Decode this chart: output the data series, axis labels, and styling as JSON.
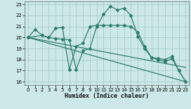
{
  "xlabel": "Humidex (Indice chaleur)",
  "xlim": [
    -0.5,
    23.5
  ],
  "ylim": [
    15.7,
    23.3
  ],
  "yticks": [
    16,
    17,
    18,
    19,
    20,
    21,
    22,
    23
  ],
  "xticks": [
    0,
    1,
    2,
    3,
    4,
    5,
    6,
    7,
    8,
    9,
    10,
    11,
    12,
    13,
    14,
    15,
    16,
    17,
    18,
    19,
    20,
    21,
    22,
    23
  ],
  "background_color": "#cce8e8",
  "grid_color": "#aacccc",
  "line_color": "#2e7d6e",
  "line1_x": [
    0,
    1,
    2,
    3,
    4,
    5,
    6,
    7,
    8,
    9,
    10,
    11,
    12,
    13,
    14,
    15,
    16,
    17,
    18,
    19,
    20,
    21,
    22,
    23
  ],
  "line1_y": [
    20.0,
    20.75,
    20.2,
    20.0,
    19.9,
    19.85,
    19.8,
    17.1,
    18.8,
    19.0,
    21.0,
    22.1,
    22.85,
    22.5,
    22.65,
    22.0,
    20.1,
    19.0,
    18.2,
    18.1,
    18.0,
    18.3,
    17.0,
    16.0
  ],
  "line2_x": [
    0,
    2,
    3,
    4,
    5,
    6,
    7,
    8,
    9,
    10,
    11,
    12,
    13,
    14,
    15,
    16,
    17,
    18,
    19,
    20,
    21,
    22,
    23
  ],
  "line2_y": [
    20.0,
    20.2,
    20.0,
    20.85,
    20.9,
    17.1,
    19.2,
    19.5,
    21.0,
    21.1,
    21.1,
    21.1,
    21.1,
    21.1,
    21.0,
    20.5,
    19.2,
    18.2,
    18.0,
    17.8,
    18.1,
    17.0,
    16.0
  ],
  "line3_x": [
    0,
    23
  ],
  "line3_y": [
    20.0,
    16.0
  ],
  "line4_x": [
    0,
    23
  ],
  "line4_y": [
    20.0,
    17.3
  ]
}
